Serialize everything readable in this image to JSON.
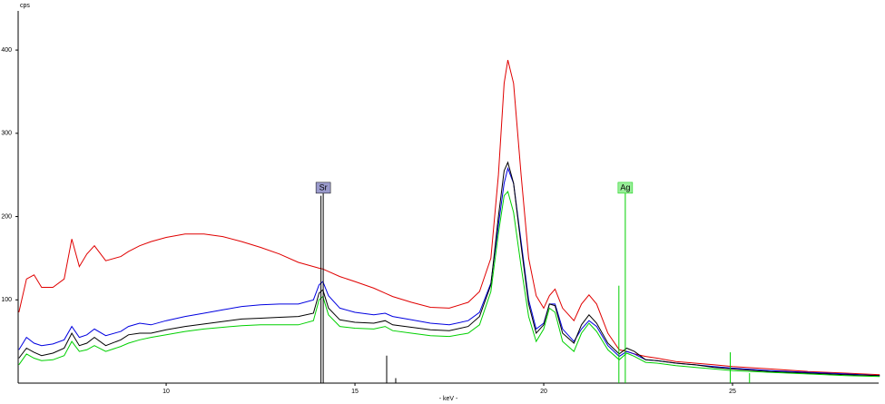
{
  "chart_data": {
    "type": "line",
    "y_label": "cps",
    "x_label": "- keV -",
    "xlim": [
      6.08,
      28.87
    ],
    "ylim": [
      0,
      447
    ],
    "xticks": [
      10,
      15,
      20,
      25
    ],
    "yticks": [
      100,
      200,
      300,
      400
    ],
    "x": [
      6.1,
      6.3,
      6.5,
      6.7,
      7.0,
      7.3,
      7.5,
      7.7,
      7.9,
      8.1,
      8.4,
      8.8,
      9.0,
      9.3,
      9.6,
      10,
      10.5,
      11,
      11.5,
      12,
      12.5,
      13,
      13.5,
      13.9,
      14.05,
      14.15,
      14.3,
      14.6,
      15,
      15.5,
      15.8,
      16.0,
      16.5,
      17,
      17.5,
      18,
      18.3,
      18.6,
      18.8,
      18.95,
      19.05,
      19.2,
      19.4,
      19.6,
      19.8,
      20.0,
      20.15,
      20.3,
      20.5,
      20.8,
      21.0,
      21.2,
      21.4,
      21.7,
      22.0,
      22.2,
      22.4,
      22.7,
      23,
      23.5,
      24,
      24.5,
      25,
      26,
      27,
      28,
      28.9
    ],
    "series": [
      {
        "color": "#e00000",
        "values": [
          85,
          125,
          130,
          115,
          115,
          125,
          173,
          140,
          155,
          165,
          147,
          152,
          158,
          165,
          170,
          175,
          179,
          179,
          176,
          170,
          163,
          155,
          145,
          140,
          138,
          137,
          134,
          128,
          122,
          114,
          108,
          104,
          97,
          91,
          90,
          97,
          110,
          150,
          250,
          360,
          388,
          360,
          250,
          150,
          105,
          90,
          105,
          113,
          90,
          75,
          95,
          106,
          95,
          60,
          40,
          38,
          35,
          32,
          30,
          26,
          24,
          22,
          20,
          17,
          14,
          12,
          10
        ]
      },
      {
        "color": "#0000e0",
        "values": [
          40,
          55,
          48,
          45,
          47,
          52,
          68,
          55,
          58,
          65,
          57,
          62,
          68,
          72,
          70,
          75,
          80,
          84,
          88,
          92,
          94,
          95,
          95,
          100,
          118,
          122,
          105,
          90,
          85,
          82,
          84,
          80,
          76,
          72,
          70,
          75,
          85,
          120,
          190,
          240,
          258,
          240,
          170,
          100,
          65,
          72,
          95,
          95,
          65,
          50,
          65,
          75,
          68,
          45,
          32,
          38,
          35,
          28,
          27,
          24,
          22,
          20,
          18,
          15,
          13,
          11,
          9
        ]
      },
      {
        "color": "#000000",
        "values": [
          30,
          42,
          37,
          33,
          36,
          42,
          60,
          45,
          48,
          55,
          45,
          52,
          58,
          60,
          60,
          64,
          68,
          71,
          74,
          77,
          78,
          79,
          80,
          84,
          108,
          112,
          90,
          76,
          73,
          72,
          75,
          70,
          67,
          64,
          63,
          68,
          80,
          118,
          200,
          255,
          265,
          240,
          165,
          95,
          60,
          70,
          95,
          93,
          60,
          48,
          70,
          82,
          72,
          48,
          35,
          42,
          38,
          28,
          27,
          24,
          22,
          19,
          17,
          14,
          12,
          10,
          9
        ]
      },
      {
        "color": "#00d000",
        "values": [
          22,
          35,
          30,
          27,
          28,
          33,
          50,
          38,
          40,
          45,
          38,
          44,
          48,
          52,
          55,
          58,
          62,
          65,
          67,
          69,
          70,
          70,
          70,
          75,
          100,
          104,
          82,
          68,
          66,
          65,
          68,
          63,
          60,
          57,
          56,
          60,
          70,
          110,
          180,
          225,
          230,
          205,
          140,
          80,
          50,
          65,
          90,
          85,
          50,
          38,
          60,
          72,
          62,
          40,
          28,
          36,
          32,
          25,
          24,
          21,
          19,
          17,
          15,
          13,
          11,
          9,
          8
        ]
      }
    ],
    "markers": [
      {
        "label": "Sr",
        "energy": 14.16,
        "height": 228,
        "color": "#000000",
        "box_color": "#9a9acc"
      },
      {
        "label": "Ag",
        "energy": 22.16,
        "height": 228,
        "color": "#00d000",
        "box_color": "#99ee99"
      }
    ],
    "sticks": [
      {
        "color": "#000000",
        "x": [
          14.1,
          15.84,
          16.08
        ],
        "values": [
          225,
          33,
          6
        ]
      },
      {
        "color": "#00d000",
        "x": [
          21.99,
          24.94,
          25.45
        ],
        "values": [
          117,
          37,
          12
        ]
      }
    ]
  }
}
